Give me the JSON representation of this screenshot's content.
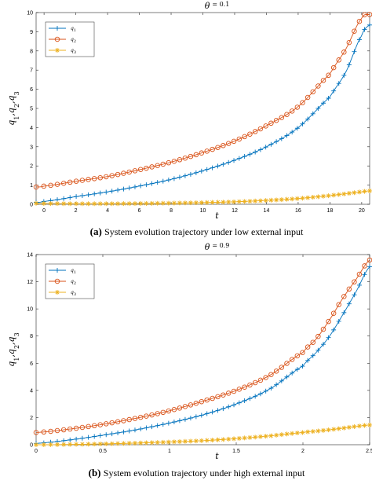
{
  "chart_data": [
    {
      "type": "line",
      "title": "θ = 0.1",
      "title_symbol": "θ",
      "title_rest": "= 0.1",
      "xlabel": "t",
      "ylabel": "q1, q2, q3",
      "ylabel_parts": [
        "q",
        "1",
        ",q",
        "2",
        ",q",
        "3"
      ],
      "caption_label": "(a)",
      "caption_text": "System evolution trajectory under low external input",
      "xlim": [
        -0.5,
        20.5
      ],
      "ylim": [
        0,
        10
      ],
      "xticks": [
        "0",
        "2",
        "4",
        "6",
        "8",
        "10",
        "12",
        "14",
        "16",
        "18",
        "20"
      ],
      "yticks": [
        "0",
        "1",
        "2",
        "3",
        "4",
        "5",
        "6",
        "7",
        "8",
        "9",
        "10"
      ],
      "legend_position": "top-left",
      "x": [
        -0.5,
        0,
        2,
        4,
        6,
        8,
        10,
        12,
        14,
        16,
        18,
        19,
        20,
        20.5
      ],
      "series": [
        {
          "name": "q1",
          "label_base": "q",
          "label_sub": "1",
          "color": "#0072BD",
          "marker": "plus",
          "values": [
            0.1,
            0.15,
            0.4,
            0.65,
            0.95,
            1.3,
            1.75,
            2.3,
            3.0,
            4.0,
            5.6,
            6.9,
            8.8,
            9.35
          ]
        },
        {
          "name": "q2",
          "label_base": "q",
          "label_sub": "2",
          "color": "#D95319",
          "marker": "circle",
          "values": [
            0.9,
            0.95,
            1.2,
            1.45,
            1.8,
            2.2,
            2.7,
            3.3,
            4.1,
            5.1,
            6.8,
            8.1,
            9.7,
            9.9
          ]
        },
        {
          "name": "q3",
          "label_base": "q",
          "label_sub": "3",
          "color": "#EDB120",
          "marker": "star",
          "values": [
            0.05,
            0.04,
            0.03,
            0.03,
            0.04,
            0.06,
            0.09,
            0.13,
            0.2,
            0.3,
            0.45,
            0.55,
            0.65,
            0.7
          ]
        }
      ]
    },
    {
      "type": "line",
      "title": "θ = 0.9",
      "title_symbol": "θ",
      "title_rest": "= 0.9",
      "xlabel": "t",
      "ylabel": "q1, q2, q3",
      "ylabel_parts": [
        "q",
        "1",
        ",q",
        "2",
        ",q",
        "3"
      ],
      "caption_label": "(b)",
      "caption_text": "System evolution trajectory under high external input",
      "xlim": [
        0,
        2.5
      ],
      "ylim": [
        0,
        14
      ],
      "xticks": [
        "0",
        "0.5",
        "1",
        "1.5",
        "2",
        "2.5"
      ],
      "yticks": [
        "0",
        "2",
        "4",
        "6",
        "8",
        "10",
        "12",
        "14"
      ],
      "legend_position": "top-left",
      "x": [
        0,
        0.25,
        0.5,
        0.75,
        1.0,
        1.25,
        1.5,
        1.75,
        2.0,
        2.1,
        2.2,
        2.3,
        2.4,
        2.5
      ],
      "series": [
        {
          "name": "q1",
          "label_base": "q",
          "label_sub": "1",
          "color": "#0072BD",
          "marker": "plus",
          "values": [
            0.1,
            0.35,
            0.7,
            1.1,
            1.6,
            2.2,
            3.0,
            4.1,
            5.8,
            6.8,
            8.0,
            9.6,
            11.3,
            13.1
          ]
        },
        {
          "name": "q2",
          "label_base": "q",
          "label_sub": "2",
          "color": "#D95319",
          "marker": "circle",
          "values": [
            0.9,
            1.15,
            1.5,
            1.95,
            2.5,
            3.2,
            4.0,
            5.1,
            6.8,
            7.8,
            9.2,
            10.8,
            12.2,
            13.6
          ]
        },
        {
          "name": "q3",
          "label_base": "q",
          "label_sub": "3",
          "color": "#EDB120",
          "marker": "star",
          "values": [
            0.0,
            0.02,
            0.06,
            0.12,
            0.2,
            0.3,
            0.45,
            0.65,
            0.9,
            1.0,
            1.1,
            1.22,
            1.35,
            1.45
          ]
        }
      ]
    }
  ]
}
